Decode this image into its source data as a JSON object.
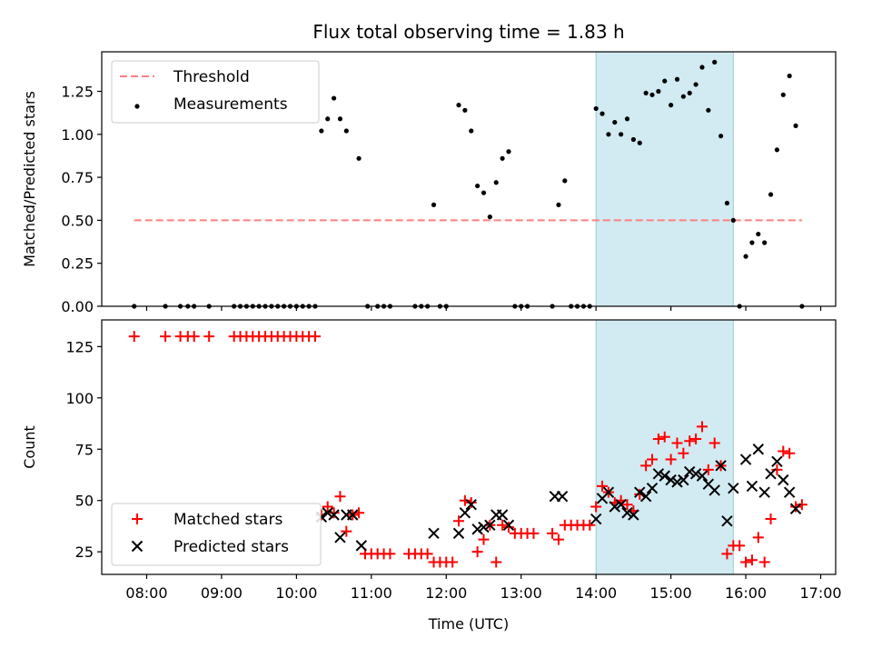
{
  "figure": {
    "title": "Flux total observing time = 1.83 h"
  },
  "chart_data": [
    {
      "type": "scatter",
      "panel": "top",
      "title": "Flux total observing time = 1.83 h",
      "xlabel": "",
      "ylabel": "Matched/Predicted stars",
      "xlim": [
        "07:24",
        "17:12"
      ],
      "ylim": [
        0,
        1.48
      ],
      "yticks": [
        0.0,
        0.25,
        0.5,
        0.75,
        1.0,
        1.25
      ],
      "ytick_labels": [
        "0.00",
        "0.25",
        "0.50",
        "0.75",
        "1.00",
        "1.25"
      ],
      "legend": {
        "position": "upper-left",
        "entries": [
          {
            "label": "Threshold",
            "style": "dashed-line",
            "color": "#ff7f7f"
          },
          {
            "label": "Measurements",
            "style": "dot",
            "color": "#000000"
          }
        ]
      },
      "shaded_region": {
        "x": [
          "14:00",
          "15:50"
        ],
        "color": "#add8e6"
      },
      "threshold": {
        "name": "Threshold",
        "y": 0.5,
        "x": [
          "07:50",
          "16:45"
        ],
        "color": "#ff7f7f"
      },
      "series": [
        {
          "name": "Measurements",
          "color": "#000000",
          "points": [
            [
              "07:50",
              0
            ],
            [
              "08:15",
              0
            ],
            [
              "08:27",
              0
            ],
            [
              "08:33",
              0
            ],
            [
              "08:38",
              0
            ],
            [
              "08:50",
              0
            ],
            [
              "09:10",
              0
            ],
            [
              "09:15",
              0
            ],
            [
              "09:20",
              0
            ],
            [
              "09:25",
              0
            ],
            [
              "09:30",
              0
            ],
            [
              "09:35",
              0
            ],
            [
              "09:40",
              0
            ],
            [
              "09:45",
              0
            ],
            [
              "09:50",
              0
            ],
            [
              "09:55",
              0
            ],
            [
              "10:00",
              0
            ],
            [
              "10:05",
              0
            ],
            [
              "10:10",
              0
            ],
            [
              "10:15",
              0
            ],
            [
              "10:20",
              1.02
            ],
            [
              "10:25",
              1.09
            ],
            [
              "10:30",
              1.21
            ],
            [
              "10:35",
              1.09
            ],
            [
              "10:40",
              1.02
            ],
            [
              "10:50",
              0.86
            ],
            [
              "10:57",
              0
            ],
            [
              "11:05",
              0
            ],
            [
              "11:10",
              0
            ],
            [
              "11:15",
              0
            ],
            [
              "11:35",
              0
            ],
            [
              "11:40",
              0
            ],
            [
              "11:45",
              0
            ],
            [
              "11:55",
              0
            ],
            [
              "12:00",
              0
            ],
            [
              "11:50",
              0.59
            ],
            [
              "12:10",
              1.17
            ],
            [
              "12:15",
              1.14
            ],
            [
              "12:20",
              1.02
            ],
            [
              "12:25",
              0.7
            ],
            [
              "12:30",
              0.66
            ],
            [
              "12:35",
              0.52
            ],
            [
              "12:40",
              0.72
            ],
            [
              "12:45",
              0.86
            ],
            [
              "12:50",
              0.9
            ],
            [
              "12:55",
              0
            ],
            [
              "13:00",
              0
            ],
            [
              "13:05",
              0
            ],
            [
              "13:25",
              0
            ],
            [
              "13:30",
              0.59
            ],
            [
              "13:35",
              0.73
            ],
            [
              "13:40",
              0
            ],
            [
              "13:45",
              0
            ],
            [
              "13:50",
              0
            ],
            [
              "13:55",
              0
            ],
            [
              "14:00",
              1.15
            ],
            [
              "14:05",
              1.12
            ],
            [
              "14:10",
              1.0
            ],
            [
              "14:15",
              1.07
            ],
            [
              "14:20",
              1.0
            ],
            [
              "14:25",
              1.09
            ],
            [
              "14:30",
              0.97
            ],
            [
              "14:35",
              0.95
            ],
            [
              "14:40",
              1.24
            ],
            [
              "14:45",
              1.23
            ],
            [
              "14:50",
              1.25
            ],
            [
              "14:55",
              1.31
            ],
            [
              "15:00",
              1.17
            ],
            [
              "15:05",
              1.32
            ],
            [
              "15:10",
              1.22
            ],
            [
              "15:15",
              1.24
            ],
            [
              "15:20",
              1.29
            ],
            [
              "15:25",
              1.39
            ],
            [
              "15:30",
              1.14
            ],
            [
              "15:35",
              1.42
            ],
            [
              "15:40",
              0.99
            ],
            [
              "15:45",
              0.6
            ],
            [
              "15:50",
              0.5
            ],
            [
              "15:55",
              0
            ],
            [
              "16:00",
              0.29
            ],
            [
              "16:05",
              0.37
            ],
            [
              "16:10",
              0.42
            ],
            [
              "16:15",
              0.37
            ],
            [
              "16:20",
              0.65
            ],
            [
              "16:25",
              0.91
            ],
            [
              "16:30",
              1.23
            ],
            [
              "16:35",
              1.34
            ],
            [
              "16:40",
              1.05
            ],
            [
              "16:45",
              0
            ]
          ]
        }
      ]
    },
    {
      "type": "scatter",
      "panel": "bottom",
      "title": "",
      "xlabel": "Time (UTC)",
      "ylabel": "Count",
      "xlim": [
        "07:24",
        "17:12"
      ],
      "ylim": [
        14,
        138
      ],
      "yticks": [
        25,
        50,
        75,
        100,
        125
      ],
      "ytick_labels": [
        "25",
        "50",
        "75",
        "100",
        "125"
      ],
      "xticks": [
        "08:00",
        "09:00",
        "10:00",
        "11:00",
        "12:00",
        "13:00",
        "14:00",
        "15:00",
        "16:00",
        "17:00"
      ],
      "xtick_labels": [
        "08:00",
        "09:00",
        "10:00",
        "11:00",
        "12:00",
        "13:00",
        "14:00",
        "15:00",
        "16:00",
        "17:00"
      ],
      "legend": {
        "position": "lower-left",
        "entries": [
          {
            "label": "Matched stars",
            "style": "plus",
            "color": "#ff0000"
          },
          {
            "label": "Predicted stars",
            "style": "x",
            "color": "#000000"
          }
        ]
      },
      "shaded_region": {
        "x": [
          "14:00",
          "15:50"
        ],
        "color": "#add8e6"
      },
      "series": [
        {
          "name": "Matched stars",
          "marker": "plus",
          "color": "#ff0000",
          "points": [
            [
              "07:50",
              130
            ],
            [
              "08:15",
              130
            ],
            [
              "08:27",
              130
            ],
            [
              "08:33",
              130
            ],
            [
              "08:38",
              130
            ],
            [
              "08:50",
              130
            ],
            [
              "09:10",
              130
            ],
            [
              "09:15",
              130
            ],
            [
              "09:20",
              130
            ],
            [
              "09:25",
              130
            ],
            [
              "09:30",
              130
            ],
            [
              "09:35",
              130
            ],
            [
              "09:40",
              130
            ],
            [
              "09:45",
              130
            ],
            [
              "09:50",
              130
            ],
            [
              "09:55",
              130
            ],
            [
              "10:00",
              130
            ],
            [
              "10:05",
              130
            ],
            [
              "10:10",
              130
            ],
            [
              "10:15",
              130
            ],
            [
              "10:20",
              43
            ],
            [
              "10:25",
              47
            ],
            [
              "10:30",
              44
            ],
            [
              "10:35",
              52
            ],
            [
              "10:40",
              35
            ],
            [
              "10:45",
              43
            ],
            [
              "10:50",
              44
            ],
            [
              "10:55",
              24
            ],
            [
              "11:00",
              24
            ],
            [
              "11:05",
              24
            ],
            [
              "11:10",
              24
            ],
            [
              "11:15",
              24
            ],
            [
              "11:30",
              24
            ],
            [
              "11:35",
              24
            ],
            [
              "11:40",
              24
            ],
            [
              "11:45",
              24
            ],
            [
              "11:50",
              20
            ],
            [
              "11:55",
              20
            ],
            [
              "12:00",
              20
            ],
            [
              "12:05",
              20
            ],
            [
              "12:10",
              40
            ],
            [
              "12:15",
              50
            ],
            [
              "12:20",
              49
            ],
            [
              "12:25",
              25
            ],
            [
              "12:30",
              31
            ],
            [
              "12:35",
              38
            ],
            [
              "12:40",
              20
            ],
            [
              "12:45",
              38
            ],
            [
              "12:50",
              37
            ],
            [
              "12:55",
              34
            ],
            [
              "13:00",
              34
            ],
            [
              "13:05",
              34
            ],
            [
              "13:10",
              34
            ],
            [
              "13:25",
              34
            ],
            [
              "13:30",
              31
            ],
            [
              "13:35",
              38
            ],
            [
              "13:40",
              38
            ],
            [
              "13:45",
              38
            ],
            [
              "13:50",
              38
            ],
            [
              "13:55",
              38
            ],
            [
              "14:00",
              47
            ],
            [
              "14:05",
              57
            ],
            [
              "14:10",
              54
            ],
            [
              "14:15",
              49
            ],
            [
              "14:20",
              50
            ],
            [
              "14:25",
              48
            ],
            [
              "14:30",
              45
            ],
            [
              "14:35",
              53
            ],
            [
              "14:40",
              67
            ],
            [
              "14:45",
              70
            ],
            [
              "14:50",
              80
            ],
            [
              "14:55",
              81
            ],
            [
              "15:00",
              70
            ],
            [
              "15:05",
              78
            ],
            [
              "15:10",
              73
            ],
            [
              "15:15",
              79
            ],
            [
              "15:20",
              80
            ],
            [
              "15:25",
              86
            ],
            [
              "15:30",
              65
            ],
            [
              "15:35",
              78
            ],
            [
              "15:40",
              67
            ],
            [
              "15:45",
              24
            ],
            [
              "15:50",
              28
            ],
            [
              "15:55",
              28
            ],
            [
              "16:00",
              20
            ],
            [
              "16:05",
              21
            ],
            [
              "16:10",
              32
            ],
            [
              "16:15",
              20
            ],
            [
              "16:20",
              41
            ],
            [
              "16:25",
              65
            ],
            [
              "16:30",
              74
            ],
            [
              "16:35",
              73
            ],
            [
              "16:40",
              47
            ],
            [
              "16:45",
              48
            ]
          ]
        },
        {
          "name": "Predicted stars",
          "marker": "x",
          "color": "#000000",
          "points": [
            [
              "10:20",
              42
            ],
            [
              "10:25",
              44
            ],
            [
              "10:30",
              43
            ],
            [
              "10:35",
              32
            ],
            [
              "10:40",
              43
            ],
            [
              "10:45",
              43
            ],
            [
              "10:52",
              28
            ],
            [
              "11:50",
              34
            ],
            [
              "12:10",
              34
            ],
            [
              "12:15",
              44
            ],
            [
              "12:20",
              48
            ],
            [
              "12:25",
              36
            ],
            [
              "12:30",
              37
            ],
            [
              "12:35",
              38
            ],
            [
              "12:40",
              43
            ],
            [
              "12:45",
              43
            ],
            [
              "12:50",
              38
            ],
            [
              "13:27",
              52
            ],
            [
              "13:33",
              52
            ],
            [
              "14:00",
              41
            ],
            [
              "14:05",
              51
            ],
            [
              "14:10",
              54
            ],
            [
              "14:15",
              47
            ],
            [
              "14:20",
              48
            ],
            [
              "14:25",
              44
            ],
            [
              "14:30",
              43
            ],
            [
              "14:35",
              54
            ],
            [
              "14:40",
              52
            ],
            [
              "14:45",
              56
            ],
            [
              "14:50",
              63
            ],
            [
              "14:55",
              62
            ],
            [
              "15:00",
              60
            ],
            [
              "15:05",
              59
            ],
            [
              "15:10",
              60
            ],
            [
              "15:15",
              64
            ],
            [
              "15:20",
              63
            ],
            [
              "15:25",
              62
            ],
            [
              "15:30",
              58
            ],
            [
              "15:35",
              55
            ],
            [
              "15:40",
              67
            ],
            [
              "15:45",
              40
            ],
            [
              "15:50",
              56
            ],
            [
              "16:00",
              70
            ],
            [
              "16:05",
              57
            ],
            [
              "16:10",
              75
            ],
            [
              "16:15",
              54
            ],
            [
              "16:20",
              63
            ],
            [
              "16:25",
              69
            ],
            [
              "16:30",
              60
            ],
            [
              "16:35",
              54
            ],
            [
              "16:40",
              46
            ]
          ]
        }
      ]
    }
  ]
}
